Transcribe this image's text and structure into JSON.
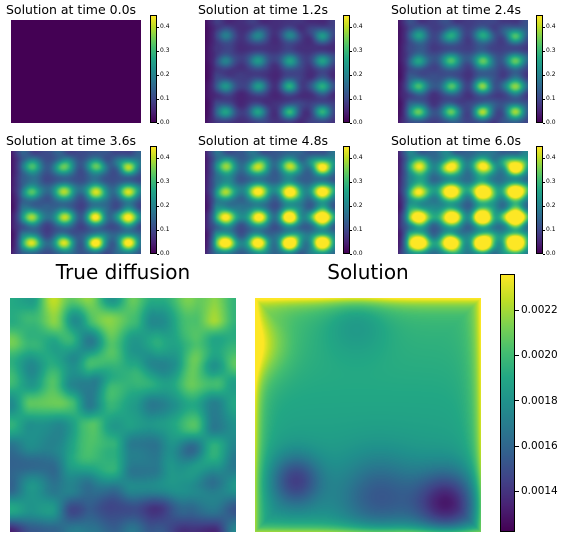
{
  "chart_data": [
    {
      "type": "heatmap",
      "title": "Solution at time 0.0s",
      "time": 0.0,
      "colorbar_ticks": [
        "0.0",
        "0.1",
        "0.2",
        "0.3",
        "0.4"
      ],
      "clim": [
        0,
        0.45
      ]
    },
    {
      "type": "heatmap",
      "title": "Solution at time 1.2s",
      "time": 1.2,
      "colorbar_ticks": [
        "0.0",
        "0.1",
        "0.2",
        "0.3",
        "0.4"
      ],
      "clim": [
        0,
        0.45
      ]
    },
    {
      "type": "heatmap",
      "title": "Solution at time 2.4s",
      "time": 2.4,
      "colorbar_ticks": [
        "0.0",
        "0.1",
        "0.2",
        "0.3",
        "0.4"
      ],
      "clim": [
        0,
        0.45
      ]
    },
    {
      "type": "heatmap",
      "title": "Solution at time 3.6s",
      "time": 3.6,
      "colorbar_ticks": [
        "0.0",
        "0.1",
        "0.2",
        "0.3",
        "0.4"
      ],
      "clim": [
        0,
        0.45
      ]
    },
    {
      "type": "heatmap",
      "title": "Solution at time 4.8s",
      "time": 4.8,
      "colorbar_ticks": [
        "0.0",
        "0.1",
        "0.2",
        "0.3",
        "0.4"
      ],
      "clim": [
        0,
        0.45
      ]
    },
    {
      "type": "heatmap",
      "title": "Solution at time 6.0s",
      "time": 6.0,
      "colorbar_ticks": [
        "0.0",
        "0.1",
        "0.2",
        "0.3",
        "0.4"
      ],
      "clim": [
        0,
        0.45
      ]
    },
    {
      "type": "heatmap",
      "title": "True diffusion",
      "clim": [
        0.00122,
        0.00236
      ]
    },
    {
      "type": "heatmap",
      "title": "Solution",
      "clim": [
        0.00122,
        0.00236
      ],
      "colorbar_ticks": [
        "0.0014",
        "0.0016",
        "0.0018",
        "0.0020",
        "0.0022"
      ]
    }
  ],
  "colors": {
    "colormap": "viridis",
    "low": "#440154",
    "mid": "#21918c",
    "high": "#fde725"
  }
}
